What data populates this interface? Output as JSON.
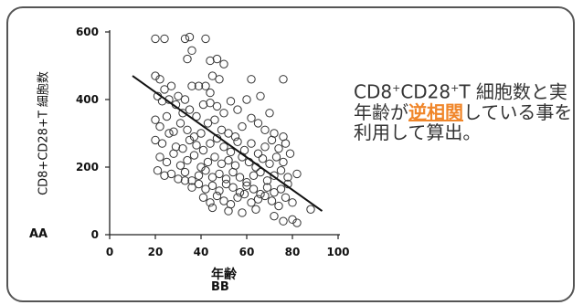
{
  "caption": {
    "pre": "CD8",
    "sup1": "+",
    "mid": "CD28",
    "sup2": "+",
    "post": "T 細胞数と実年齢が",
    "highlight": "逆相関",
    "tail": "している事を利用して算出。"
  },
  "label_aa": "AA",
  "label_bb": "BB",
  "colors": {
    "frame": "#555555",
    "highlight": "#f0862a",
    "text": "#333333"
  },
  "chart_data": {
    "type": "scatter",
    "title": "",
    "xlabel": "年齢",
    "ylabel": "CD8+CD28+T 細胞数",
    "xlim": [
      0,
      100
    ],
    "ylim": [
      0,
      600
    ],
    "xticks": [
      "0",
      "20",
      "40",
      "60",
      "80",
      "100"
    ],
    "yticks": [
      "0",
      "200",
      "400",
      "600"
    ],
    "grid": false,
    "trendline": {
      "x": [
        10,
        93
      ],
      "y": [
        470,
        70
      ]
    },
    "points": [
      [
        20,
        580
      ],
      [
        24,
        580
      ],
      [
        33,
        580
      ],
      [
        35,
        585
      ],
      [
        42,
        580
      ],
      [
        36,
        545
      ],
      [
        34,
        520
      ],
      [
        44,
        515
      ],
      [
        47,
        520
      ],
      [
        50,
        505
      ],
      [
        62,
        460
      ],
      [
        76,
        460
      ],
      [
        20,
        470
      ],
      [
        22,
        460
      ],
      [
        24,
        430
      ],
      [
        27,
        440
      ],
      [
        30,
        410
      ],
      [
        33,
        400
      ],
      [
        36,
        440
      ],
      [
        39,
        440
      ],
      [
        42,
        440
      ],
      [
        45,
        470
      ],
      [
        48,
        460
      ],
      [
        44,
        420
      ],
      [
        21,
        410
      ],
      [
        23,
        395
      ],
      [
        26,
        400
      ],
      [
        29,
        385
      ],
      [
        32,
        360
      ],
      [
        35,
        370
      ],
      [
        38,
        350
      ],
      [
        41,
        385
      ],
      [
        44,
        390
      ],
      [
        47,
        380
      ],
      [
        50,
        360
      ],
      [
        53,
        395
      ],
      [
        56,
        370
      ],
      [
        60,
        400
      ],
      [
        66,
        410
      ],
      [
        70,
        360
      ],
      [
        20,
        340
      ],
      [
        22,
        320
      ],
      [
        25,
        350
      ],
      [
        28,
        305
      ],
      [
        31,
        330
      ],
      [
        34,
        310
      ],
      [
        37,
        290
      ],
      [
        40,
        300
      ],
      [
        43,
        330
      ],
      [
        46,
        340
      ],
      [
        49,
        310
      ],
      [
        52,
        300
      ],
      [
        55,
        290
      ],
      [
        58,
        320
      ],
      [
        62,
        345
      ],
      [
        65,
        330
      ],
      [
        68,
        310
      ],
      [
        72,
        300
      ],
      [
        76,
        290
      ],
      [
        20,
        280
      ],
      [
        23,
        270
      ],
      [
        26,
        300
      ],
      [
        29,
        260
      ],
      [
        32,
        255
      ],
      [
        35,
        280
      ],
      [
        38,
        265
      ],
      [
        41,
        250
      ],
      [
        44,
        270
      ],
      [
        47,
        285
      ],
      [
        50,
        260
      ],
      [
        53,
        245
      ],
      [
        56,
        275
      ],
      [
        59,
        250
      ],
      [
        62,
        270
      ],
      [
        65,
        240
      ],
      [
        68,
        260
      ],
      [
        71,
        280
      ],
      [
        74,
        255
      ],
      [
        77,
        270
      ],
      [
        22,
        230
      ],
      [
        25,
        215
      ],
      [
        28,
        240
      ],
      [
        31,
        205
      ],
      [
        34,
        220
      ],
      [
        37,
        235
      ],
      [
        40,
        200
      ],
      [
        43,
        215
      ],
      [
        46,
        230
      ],
      [
        49,
        210
      ],
      [
        52,
        220
      ],
      [
        55,
        205
      ],
      [
        58,
        230
      ],
      [
        61,
        215
      ],
      [
        64,
        200
      ],
      [
        67,
        225
      ],
      [
        70,
        210
      ],
      [
        73,
        230
      ],
      [
        76,
        215
      ],
      [
        79,
        240
      ],
      [
        21,
        190
      ],
      [
        24,
        175
      ],
      [
        27,
        180
      ],
      [
        30,
        165
      ],
      [
        33,
        185
      ],
      [
        36,
        160
      ],
      [
        39,
        175
      ],
      [
        42,
        190
      ],
      [
        45,
        170
      ],
      [
        48,
        180
      ],
      [
        51,
        165
      ],
      [
        54,
        185
      ],
      [
        57,
        170
      ],
      [
        60,
        155
      ],
      [
        63,
        175
      ],
      [
        66,
        185
      ],
      [
        69,
        160
      ],
      [
        72,
        175
      ],
      [
        75,
        190
      ],
      [
        78,
        170
      ],
      [
        82,
        180
      ],
      [
        33,
        160
      ],
      [
        36,
        140
      ],
      [
        39,
        150
      ],
      [
        42,
        135
      ],
      [
        45,
        145
      ],
      [
        48,
        130
      ],
      [
        51,
        150
      ],
      [
        54,
        140
      ],
      [
        57,
        125
      ],
      [
        60,
        145
      ],
      [
        63,
        135
      ],
      [
        66,
        120
      ],
      [
        69,
        140
      ],
      [
        72,
        125
      ],
      [
        75,
        135
      ],
      [
        78,
        150
      ],
      [
        41,
        110
      ],
      [
        44,
        95
      ],
      [
        47,
        115
      ],
      [
        50,
        100
      ],
      [
        53,
        90
      ],
      [
        56,
        110
      ],
      [
        59,
        120
      ],
      [
        62,
        95
      ],
      [
        65,
        105
      ],
      [
        68,
        115
      ],
      [
        71,
        100
      ],
      [
        74,
        85
      ],
      [
        77,
        110
      ],
      [
        80,
        95
      ],
      [
        88,
        75
      ],
      [
        45,
        80
      ],
      [
        52,
        70
      ],
      [
        58,
        65
      ],
      [
        64,
        75
      ],
      [
        72,
        55
      ],
      [
        76,
        40
      ],
      [
        80,
        45
      ],
      [
        82,
        35
      ]
    ]
  }
}
